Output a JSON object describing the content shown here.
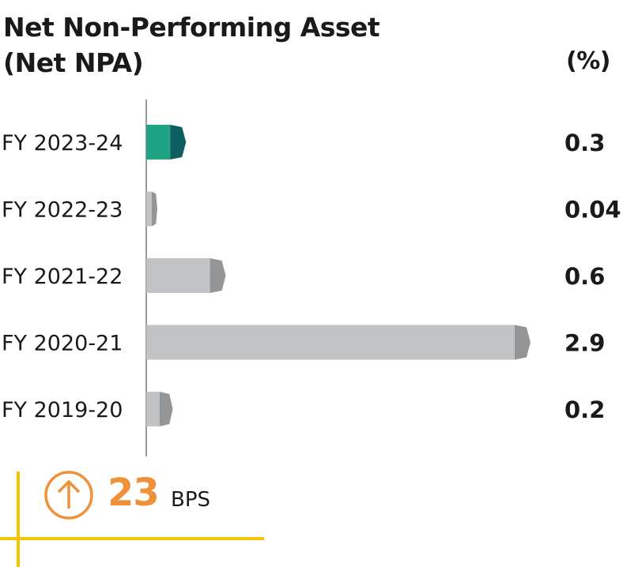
{
  "chart_data": {
    "type": "bar",
    "orientation": "horizontal",
    "title_line1": "Net Non-Performing Asset",
    "title_line2": "(Net NPA)",
    "unit": "(%)",
    "categories": [
      "FY 2023-24",
      "FY 2022-23",
      "FY 2021-22",
      "FY 2020-21",
      "FY 2019-20"
    ],
    "values": [
      0.3,
      0.04,
      0.6,
      2.9,
      0.2
    ],
    "value_labels": [
      "0.3",
      "0.04",
      "0.6",
      "2.9",
      "0.2"
    ],
    "highlight_index": 0,
    "colors": {
      "highlight_face": "#1fa384",
      "highlight_cap": "#0e5f5f",
      "bar_face": "#c2c3c5",
      "bar_cap": "#939597",
      "axis": "#9a9a9a"
    },
    "xlim": [
      0,
      2.9
    ],
    "grid": false,
    "legend": "none"
  },
  "callout": {
    "value": "23",
    "unit": "BPS",
    "icon": "arrow-up-circle-icon",
    "color": "#f0913a",
    "accent": "#f5c400"
  }
}
